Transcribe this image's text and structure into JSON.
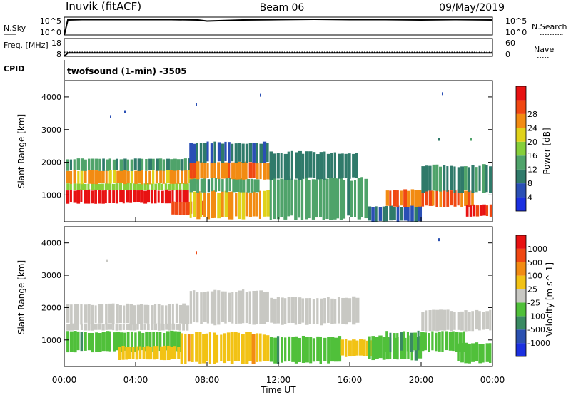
{
  "header": {
    "station": "Inuvik (fitACF)",
    "beam": "Beam 06",
    "date": "09/May/2019"
  },
  "colors": {
    "power_scale": [
      "#1b30e0",
      "#2a4fb5",
      "#2f7a6a",
      "#4fa36a",
      "#86cf3a",
      "#e0d21a",
      "#f28b12",
      "#f04712",
      "#e81212"
    ],
    "velocity_scale": [
      "#1b30e0",
      "#2a50b0",
      "#3a8a62",
      "#50c03a",
      "#c8c8c3",
      "#f2c214",
      "#f28b12",
      "#f04712",
      "#e81212"
    ]
  },
  "chart_data": [
    {
      "type": "line",
      "name": "nsky-nsearch",
      "left_label": "N.Sky",
      "right_label": "N.Search",
      "left_ticks": [
        "10^5",
        "10^0"
      ],
      "right_ticks": [
        "10^5",
        "10^0"
      ],
      "x": [
        0.0,
        0.2,
        1.0,
        2.0,
        4.0,
        6.0,
        7.5,
        8.0,
        10.0,
        12.0,
        14.0,
        16.0,
        18.0,
        20.0,
        22.0,
        24.0
      ],
      "series": [
        {
          "name": "N.Sky",
          "values": [
            0.0,
            4.2,
            4.3,
            4.3,
            4.3,
            4.3,
            4.2,
            3.9,
            4.2,
            4.3,
            4.4,
            4.3,
            4.3,
            4.2,
            4.3,
            4.2
          ]
        }
      ],
      "ylim": [
        0,
        5
      ]
    },
    {
      "type": "line",
      "name": "freq-nave",
      "left_label": "Freq. [MHz]",
      "right_label": "Nave",
      "left_ticks": [
        "18",
        "8"
      ],
      "right_ticks": [
        "60",
        "0"
      ],
      "x": [
        0.0,
        0.2,
        24.0
      ],
      "series": [
        {
          "name": "Freq",
          "values": [
            8.0,
            9.9,
            9.9
          ],
          "ylim": [
            8,
            18
          ]
        },
        {
          "name": "Nave",
          "values": [
            14,
            14,
            14
          ],
          "ylim": [
            0,
            60
          ]
        }
      ]
    },
    {
      "type": "text",
      "name": "cpid",
      "label": "CPID",
      "value": "twofsound (1-min) -3505"
    },
    {
      "type": "heatmap",
      "name": "power",
      "quantity": "Power [dB]",
      "ylabel": "Slant Range [km]",
      "yticks": [
        1000,
        2000,
        3000,
        4000
      ],
      "ylim": [
        180,
        4500
      ],
      "colorbar_ticks": [
        4,
        8,
        12,
        16,
        20,
        24,
        28
      ],
      "colorbar_range": [
        0,
        32
      ],
      "bands": [
        {
          "t": [
            0.1,
            7.0
          ],
          "r": [
            750,
            1150
          ],
          "v": 30
        },
        {
          "t": [
            0.1,
            7.0
          ],
          "r": [
            1150,
            1350
          ],
          "v": 16
        },
        {
          "t": [
            0.1,
            7.5
          ],
          "r": [
            1350,
            1750
          ],
          "v": 22
        },
        {
          "t": [
            0.1,
            7.5
          ],
          "r": [
            1750,
            2100
          ],
          "v": 11
        },
        {
          "t": [
            6.0,
            8.0
          ],
          "r": [
            400,
            800
          ],
          "v": 26
        },
        {
          "t": [
            7.0,
            11.5
          ],
          "r": [
            300,
            1100
          ],
          "v": 22
        },
        {
          "t": [
            7.0,
            11.0
          ],
          "r": [
            1100,
            1500
          ],
          "v": 12
        },
        {
          "t": [
            7.0,
            11.5
          ],
          "r": [
            1500,
            2000
          ],
          "v": 24
        },
        {
          "t": [
            7.0,
            11.5
          ],
          "r": [
            2000,
            2600
          ],
          "v": 8
        },
        {
          "t": [
            11.5,
            17.0
          ],
          "r": [
            300,
            1500
          ],
          "v": 12
        },
        {
          "t": [
            11.5,
            16.5
          ],
          "r": [
            1500,
            2300
          ],
          "v": 9
        },
        {
          "t": [
            17.0,
            20.0
          ],
          "r": [
            200,
            650
          ],
          "v": 7
        },
        {
          "t": [
            18.0,
            23.0
          ],
          "r": [
            650,
            1150
          ],
          "v": 25
        },
        {
          "t": [
            20.0,
            24.0
          ],
          "r": [
            1100,
            1900
          ],
          "v": 10
        },
        {
          "t": [
            22.5,
            24.0
          ],
          "r": [
            350,
            700
          ],
          "v": 29
        }
      ],
      "dots": [
        {
          "t": 2.6,
          "r": 3400,
          "v": 5
        },
        {
          "t": 3.4,
          "r": 3550,
          "v": 4
        },
        {
          "t": 7.4,
          "r": 3780,
          "v": 4
        },
        {
          "t": 11.0,
          "r": 4050,
          "v": 5
        },
        {
          "t": 21.2,
          "r": 4100,
          "v": 5
        },
        {
          "t": 21.0,
          "r": 2700,
          "v": 8
        },
        {
          "t": 22.8,
          "r": 2700,
          "v": 14
        }
      ]
    },
    {
      "type": "heatmap",
      "name": "velocity",
      "quantity": "Velocity [m s^-1]",
      "ylabel": "Slant Range [km]",
      "yticks": [
        1000,
        2000,
        3000,
        4000
      ],
      "ylim": [
        180,
        4500
      ],
      "colorbar_ticks": [
        1000,
        500,
        100,
        25,
        -25,
        -100,
        -500,
        -1000
      ],
      "colorbar_range": [
        -1200,
        1200
      ],
      "xlabel": "Time UT",
      "xticks": [
        "00:00",
        "04:00",
        "08:00",
        "12:00",
        "16:00",
        "20:00",
        "00:00"
      ],
      "xlim": [
        0,
        24
      ],
      "bands": [
        {
          "t": [
            0.1,
            7.0
          ],
          "r": [
            1500,
            2100
          ],
          "v": 0
        },
        {
          "t": [
            0.1,
            7.0
          ],
          "r": [
            1300,
            1500
          ],
          "v": -20
        },
        {
          "t": [
            0.1,
            6.5
          ],
          "r": [
            650,
            1250
          ],
          "v": -300
        },
        {
          "t": [
            3.0,
            6.5
          ],
          "r": [
            400,
            800
          ],
          "v": 300
        },
        {
          "t": [
            6.5,
            11.5
          ],
          "r": [
            300,
            1200
          ],
          "v": 300
        },
        {
          "t": [
            7.0,
            11.5
          ],
          "r": [
            1500,
            2500
          ],
          "v": 0
        },
        {
          "t": [
            11.5,
            15.5
          ],
          "r": [
            300,
            1100
          ],
          "v": -300
        },
        {
          "t": [
            11.5,
            16.5
          ],
          "r": [
            1500,
            2300
          ],
          "v": 0
        },
        {
          "t": [
            15.5,
            17.5
          ],
          "r": [
            500,
            1000
          ],
          "v": 300
        },
        {
          "t": [
            17.0,
            20.0
          ],
          "r": [
            400,
            1100
          ],
          "v": -300
        },
        {
          "t": [
            18.0,
            22.5
          ],
          "r": [
            650,
            1250
          ],
          "v": -300
        },
        {
          "t": [
            20.0,
            24.0
          ],
          "r": [
            1300,
            1900
          ],
          "v": 0
        },
        {
          "t": [
            22.0,
            24.0
          ],
          "r": [
            300,
            900
          ],
          "v": -300
        }
      ],
      "dots": [
        {
          "t": 7.4,
          "r": 3700,
          "v": 900
        },
        {
          "t": 21.0,
          "r": 4100,
          "v": -900
        },
        {
          "t": 2.4,
          "r": 3450,
          "v": 0
        }
      ]
    }
  ]
}
